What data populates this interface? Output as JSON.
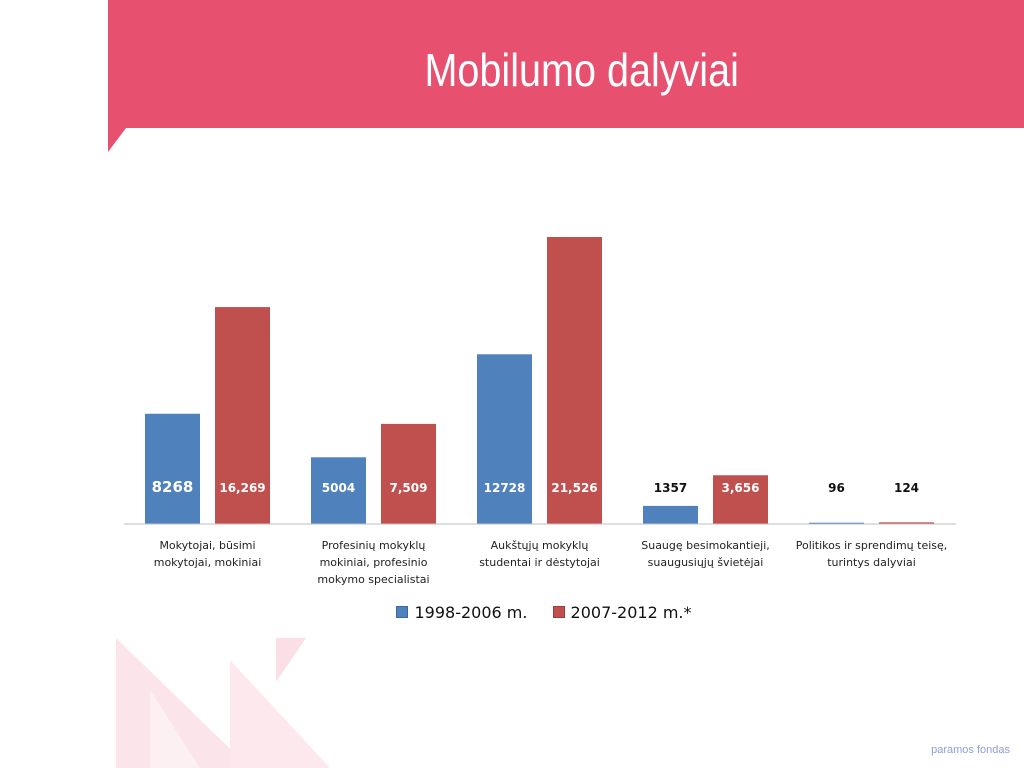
{
  "slide": {
    "title": "Mobilumo dalyviai",
    "footer": "paramos fondas"
  },
  "colors": {
    "accent": "#e8506f",
    "series_blue": "#4f81bd",
    "series_red": "#c0504d"
  },
  "chart_data": {
    "type": "bar",
    "categories": [
      "Mokytojai, būsimi mokytojai, mokiniai",
      "Profesinių mokyklų mokiniai, profesinio mokymo specialistai",
      "Aukštųjų mokyklų studentai ir dėstytojai",
      "Suaugę besimokantieji, suaugusiųjų švietėjai",
      "Politikos ir sprendimų teisę, turintys dalyviai"
    ],
    "category_lines": [
      [
        "Mokytojai, būsimi",
        "mokytojai, mokiniai"
      ],
      [
        "Profesinių mokyklų",
        "mokiniai, profesinio",
        "mokymo specialistai"
      ],
      [
        "Aukštųjų mokyklų",
        "studentai ir dėstytojai"
      ],
      [
        "Suaugę besimokantieji,",
        "suaugusiųjų švietėjai"
      ],
      [
        "Politikos ir sprendimų teisę,",
        "turintys dalyviai"
      ]
    ],
    "series": [
      {
        "name": "1998-2006 m.",
        "values": [
          8268,
          5004,
          12728,
          1357,
          96
        ],
        "labels": [
          "8268",
          "5004",
          "12728",
          "1357",
          "96"
        ]
      },
      {
        "name": "2007-2012 m.*",
        "values": [
          16269,
          7509,
          21526,
          3656,
          124
        ],
        "labels": [
          "16,269",
          "7,509",
          "21,526",
          "3,656",
          "124"
        ]
      }
    ],
    "ylim": [
      0,
      26000
    ],
    "grid": false,
    "legend_position": "bottom"
  }
}
